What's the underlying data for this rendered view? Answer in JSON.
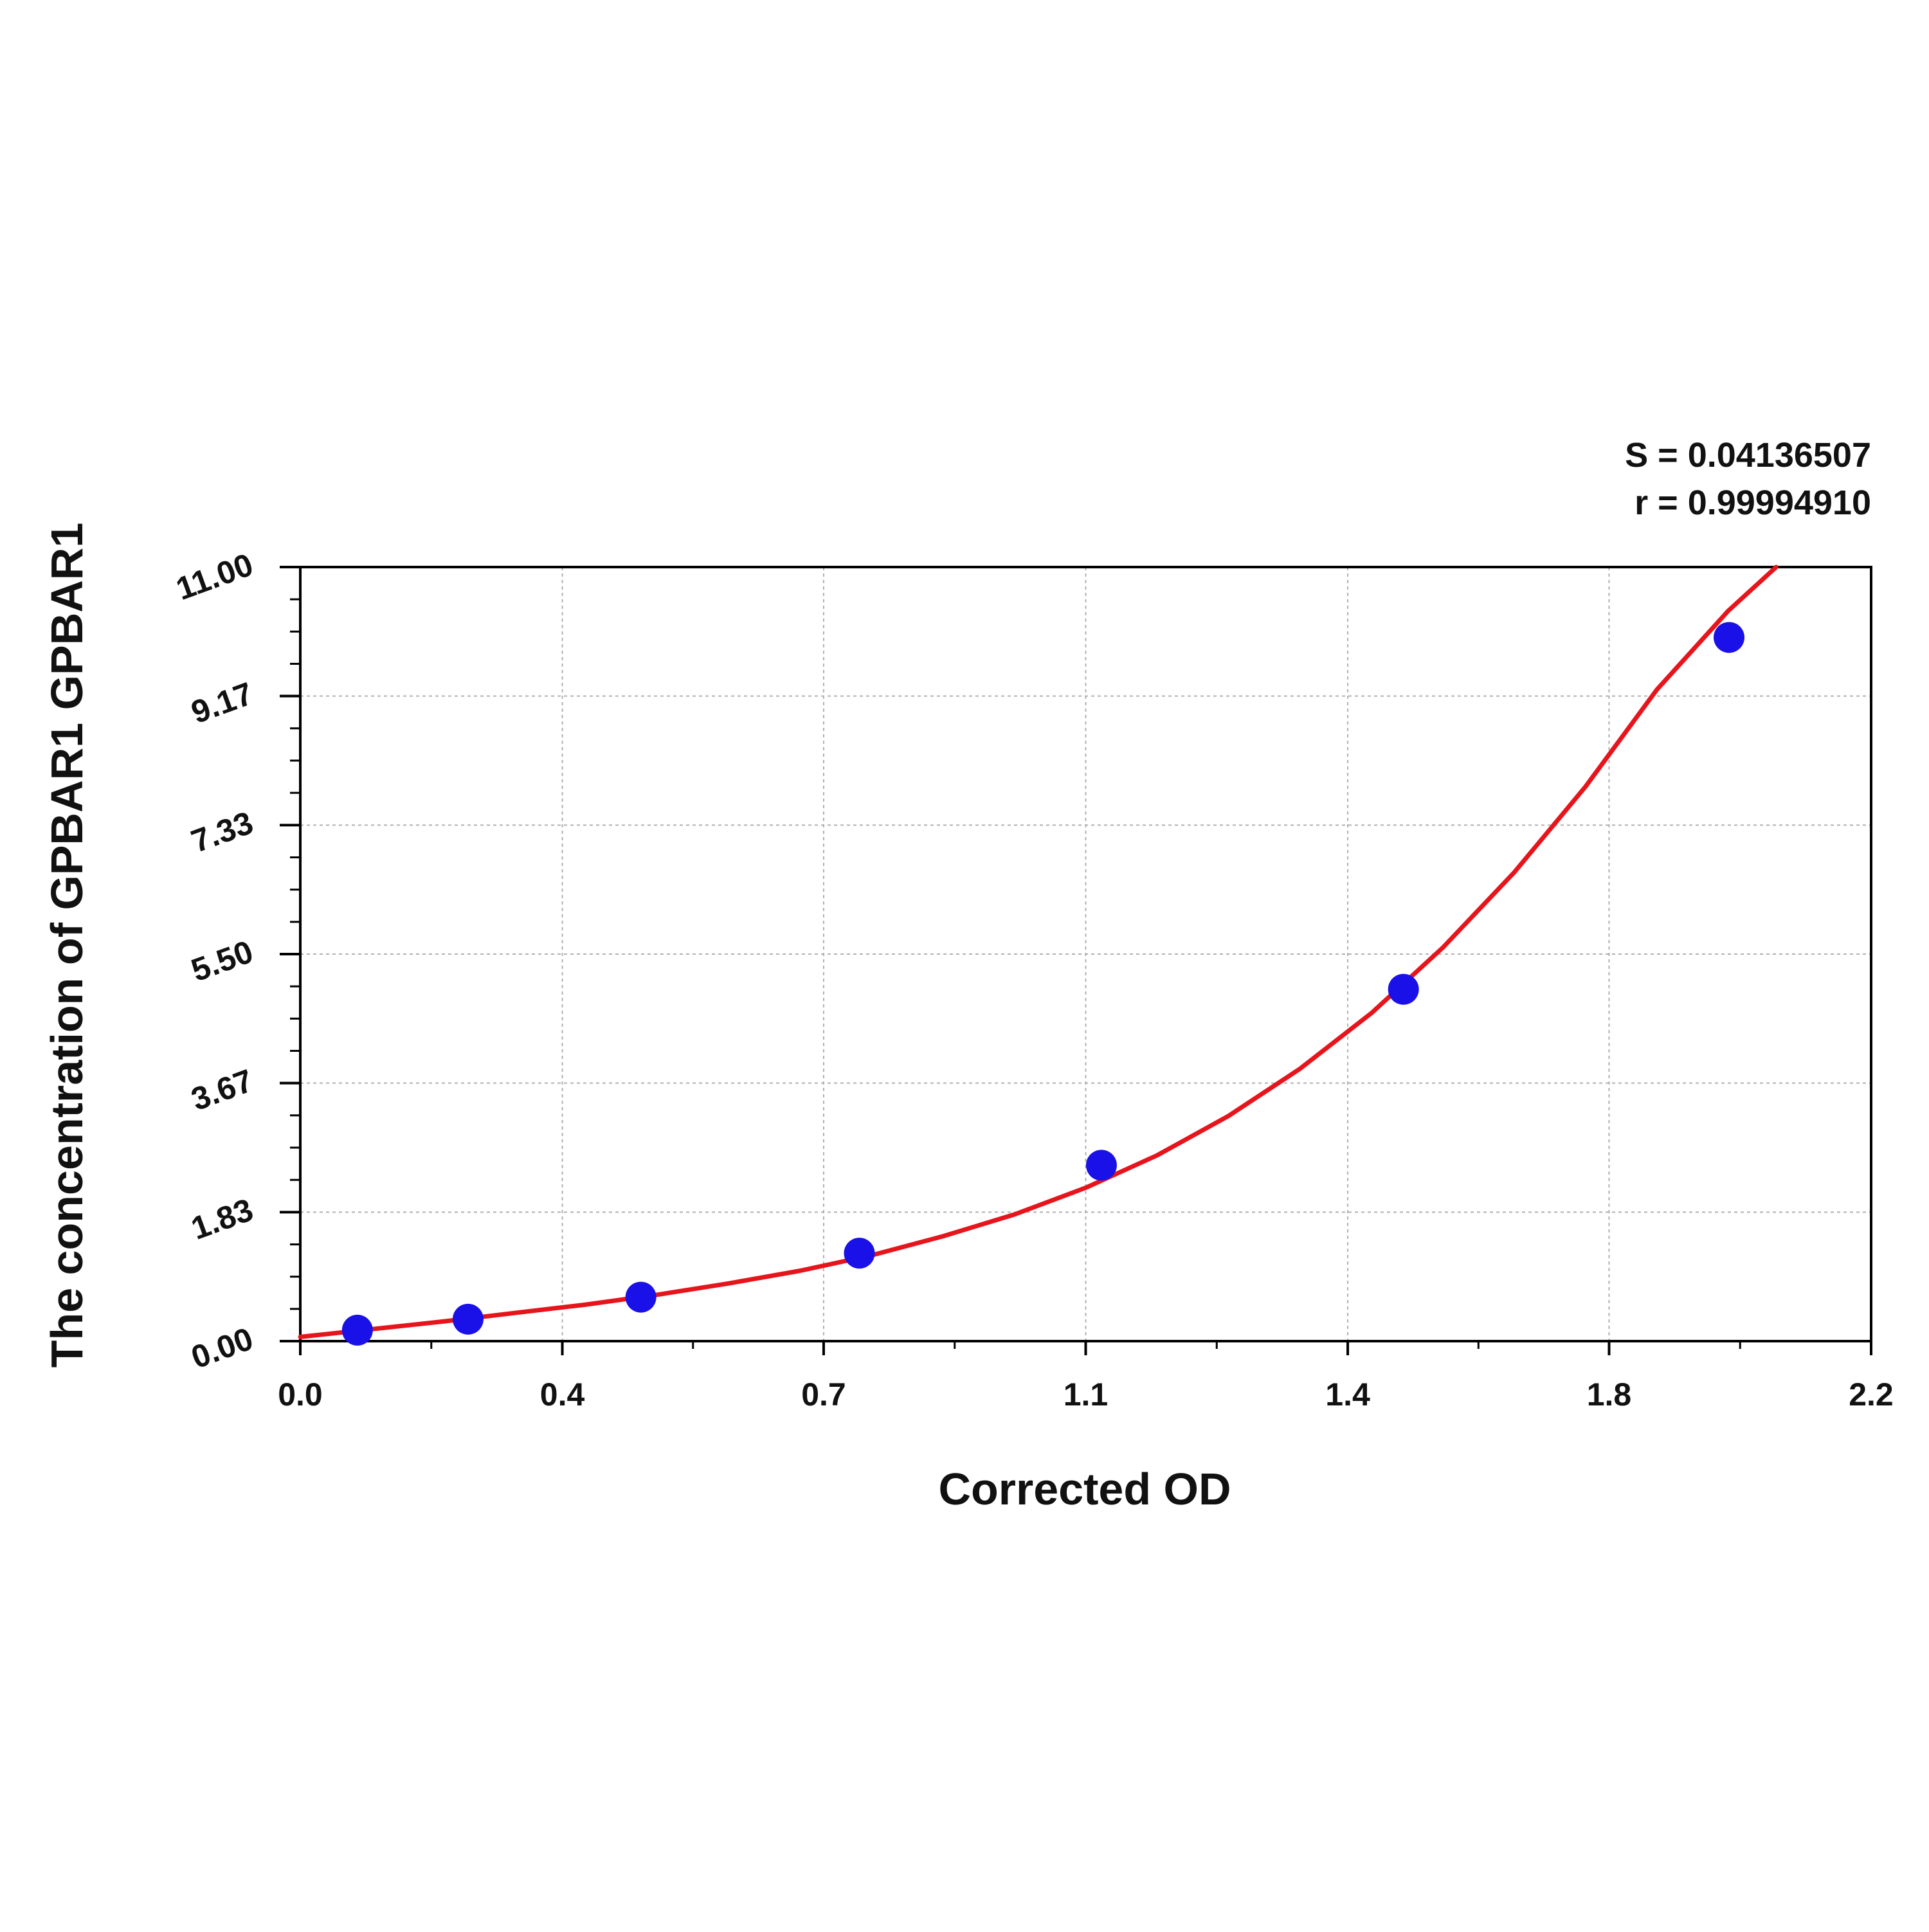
{
  "chart_data": {
    "type": "scatter",
    "title": "",
    "xlabel": "Corrected OD",
    "ylabel": "The concentration of GPBAR1 GPBAR1",
    "xlim": [
      0.0,
      2.2
    ],
    "ylim": [
      0.0,
      11.0
    ],
    "x_ticks": [
      "0.0",
      "0.4",
      "0.7",
      "1.1",
      "1.4",
      "1.8",
      "2.2"
    ],
    "x_tick_values": [
      0.0,
      0.367,
      0.733,
      1.1,
      1.467,
      1.833,
      2.2
    ],
    "y_ticks": [
      "0.00",
      "1.83",
      "3.67",
      "5.50",
      "7.33",
      "9.17",
      "11.00"
    ],
    "y_tick_values": [
      0.0,
      1.833,
      3.667,
      5.5,
      7.333,
      9.167,
      11.0
    ],
    "grid": true,
    "series": [
      {
        "kind": "points",
        "color": "#1a10e8",
        "x": [
          0.08,
          0.235,
          0.477,
          0.783,
          1.122,
          1.545,
          2.001
        ],
        "y": [
          0.156,
          0.312,
          0.625,
          1.25,
          2.5,
          5.0,
          10.0
        ]
      },
      {
        "kind": "fit-curve",
        "color": "#e8141c",
        "x": [
          0.0,
          0.1,
          0.2,
          0.3,
          0.4,
          0.5,
          0.6,
          0.7,
          0.8,
          0.9,
          1.0,
          1.1,
          1.2,
          1.3,
          1.4,
          1.5,
          1.6,
          1.7,
          1.8,
          1.9,
          2.0,
          2.067
        ],
        "y": [
          0.06,
          0.17,
          0.28,
          0.4,
          0.52,
          0.66,
          0.82,
          1.0,
          1.22,
          1.49,
          1.8,
          2.18,
          2.64,
          3.2,
          3.87,
          4.66,
          5.59,
          6.66,
          7.88,
          9.26,
          10.38,
          11.0
        ]
      }
    ],
    "annotations": {
      "s_value": "S = 0.04136507",
      "r_value": "r = 0.99994910"
    }
  }
}
